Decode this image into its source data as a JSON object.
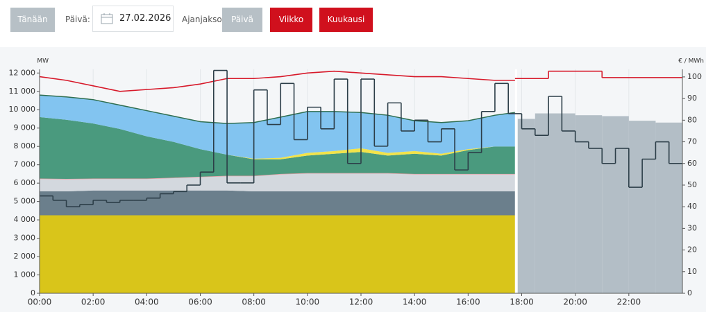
{
  "ui": {
    "today_button": "Tänään",
    "date_label": "Päivä:",
    "date_value": "27.02.2026",
    "period_label": "Ajanjakso:",
    "period_buttons": [
      "Päivä",
      "Viikko",
      "Kuukausi"
    ]
  },
  "chart_data": {
    "type": "area",
    "y_unit": "MW",
    "y2_unit": "€ / MWh",
    "x": [
      0,
      1,
      2,
      3,
      4,
      5,
      6,
      7,
      8,
      9,
      10,
      11,
      12,
      13,
      14,
      15,
      16,
      17,
      17.75
    ],
    "xlim": [
      0,
      24
    ],
    "xticks": [
      {
        "value": 0,
        "label": "00:00"
      },
      {
        "value": 2,
        "label": "02:00"
      },
      {
        "value": 4,
        "label": "04:00"
      },
      {
        "value": 6,
        "label": "06:00"
      },
      {
        "value": 8,
        "label": "08:00"
      },
      {
        "value": 10,
        "label": "10:00"
      },
      {
        "value": 12,
        "label": "12:00"
      },
      {
        "value": 14,
        "label": "14:00"
      },
      {
        "value": 16,
        "label": "16:00"
      },
      {
        "value": 18,
        "label": "18:00"
      },
      {
        "value": 20,
        "label": "20:00"
      },
      {
        "value": 22,
        "label": "22:00"
      }
    ],
    "ylim": [
      0,
      12200
    ],
    "yticks": [
      0,
      {
        "value": 1000,
        "label": "1 000"
      },
      {
        "value": 2000,
        "label": "2 000"
      },
      {
        "value": 3000,
        "label": "3 000"
      },
      {
        "value": 4000,
        "label": "4 000"
      },
      {
        "value": 5000,
        "label": "5 000"
      },
      {
        "value": 6000,
        "label": "6 000"
      },
      {
        "value": 7000,
        "label": "7 000"
      },
      {
        "value": 8000,
        "label": "8 000"
      },
      {
        "value": 9000,
        "label": "9 000"
      },
      {
        "value": 10000,
        "label": "10 000"
      },
      {
        "value": 11000,
        "label": "11 000"
      },
      {
        "value": 12000,
        "label": "12 000"
      }
    ],
    "y2lim": [
      0,
      103.5
    ],
    "y2ticks": [
      0,
      10,
      20,
      30,
      40,
      50,
      60,
      70,
      80,
      90,
      100
    ],
    "grid": true,
    "series": [
      {
        "style": "stacked",
        "color": "#d9c51a",
        "values": [
          4250,
          4250,
          4250,
          4250,
          4250,
          4250,
          4250,
          4250,
          4250,
          4250,
          4250,
          4250,
          4250,
          4250,
          4250,
          4250,
          4250,
          4250,
          4250
        ]
      },
      {
        "style": "stacked",
        "color": "#6b7f8c",
        "values": [
          1300,
          1300,
          1350,
          1350,
          1350,
          1350,
          1350,
          1350,
          1300,
          1300,
          1300,
          1300,
          1300,
          1300,
          1300,
          1300,
          1300,
          1300,
          1300
        ]
      },
      {
        "style": "stacked",
        "color": "#d3d8de",
        "stroke": "#e8a0a6",
        "values": [
          700,
          680,
          650,
          650,
          650,
          700,
          750,
          800,
          850,
          950,
          1000,
          1000,
          1000,
          1000,
          950,
          950,
          950,
          950,
          950
        ]
      },
      {
        "style": "stacked",
        "color": "#4a9a7e",
        "values": [
          3350,
          3220,
          3000,
          2700,
          2300,
          1950,
          1500,
          1150,
          900,
          800,
          950,
          1050,
          1150,
          950,
          1100,
          1000,
          1300,
          1500,
          1500
        ]
      },
      {
        "style": "stacked",
        "color": "#f2e34a",
        "values": [
          0,
          0,
          0,
          0,
          0,
          0,
          0,
          0,
          30,
          80,
          150,
          150,
          200,
          150,
          150,
          100,
          50,
          0,
          0
        ]
      },
      {
        "style": "stacked",
        "color": "#82c4f0",
        "stroke": "#2f6e50",
        "values": [
          1200,
          1250,
          1300,
          1300,
          1400,
          1400,
          1500,
          1700,
          1970,
          2220,
          2250,
          2150,
          1950,
          2050,
          1650,
          1700,
          1550,
          1700,
          1850
        ]
      },
      {
        "style": "line",
        "color": "#d7192a",
        "values": [
          11800,
          11600,
          11300,
          11000,
          11100,
          11200,
          11400,
          11700,
          11700,
          11800,
          12000,
          12100,
          12000,
          11900,
          11800,
          11800,
          11700,
          11600,
          11600
        ]
      },
      {
        "style": "step-area",
        "color": "#b3bec6",
        "x": [
          17.75,
          18.5,
          20,
          21,
          22,
          23
        ],
        "values": [
          9500,
          9800,
          9700,
          9650,
          9400,
          9300
        ]
      },
      {
        "style": "step-line",
        "color": "#d7192a",
        "x": [
          17.75,
          19,
          21
        ],
        "values": [
          11700,
          12100,
          11750
        ]
      },
      {
        "style": "step-line",
        "axis": "y2",
        "color": "#2c3e48",
        "x": [
          0,
          0.5,
          1,
          1.5,
          2,
          2.5,
          3,
          3.5,
          4,
          4.5,
          5,
          5.5,
          6,
          6.5,
          7,
          7.5,
          8,
          8.5,
          9,
          9.5,
          10,
          10.5,
          11,
          11.5,
          12,
          12.5,
          13,
          13.5,
          14,
          14.5,
          15,
          15.5,
          16,
          16.5,
          17,
          17.5,
          18,
          18.5,
          19,
          19.5,
          20,
          20.5,
          21,
          21.5,
          22,
          22.5,
          23,
          23.5
        ],
        "values": [
          45,
          43,
          40,
          41,
          43,
          42,
          43,
          43,
          44,
          46,
          47,
          50,
          56,
          103,
          51,
          51,
          94,
          78,
          97,
          71,
          86,
          76,
          99,
          60,
          99,
          68,
          88,
          75,
          80,
          70,
          76,
          57,
          65,
          84,
          97,
          83,
          76,
          73,
          91,
          75,
          70,
          67,
          60,
          67,
          49,
          62,
          70,
          60
        ]
      }
    ]
  }
}
